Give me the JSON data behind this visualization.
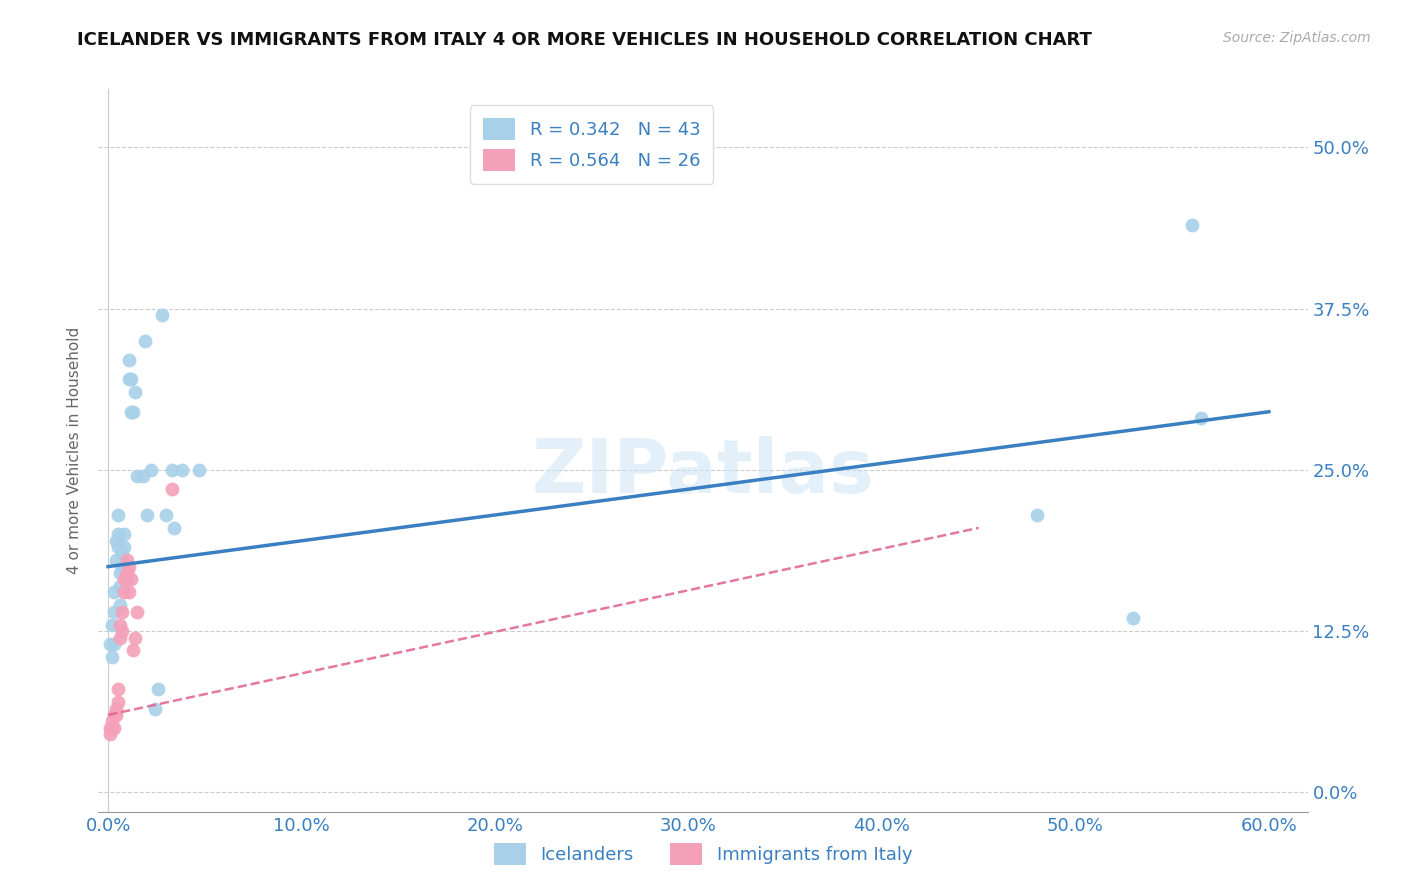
{
  "title": "ICELANDER VS IMMIGRANTS FROM ITALY 4 OR MORE VEHICLES IN HOUSEHOLD CORRELATION CHART",
  "source": "Source: ZipAtlas.com",
  "xlabel_ticks": [
    "0.0%",
    "10.0%",
    "20.0%",
    "30.0%",
    "40.0%",
    "50.0%",
    "60.0%"
  ],
  "ylabel_ticks": [
    "0.0%",
    "12.5%",
    "25.0%",
    "37.5%",
    "50.0%"
  ],
  "ylabel_label": "4 or more Vehicles in Household",
  "legend_label1": "Icelanders",
  "legend_label2": "Immigrants from Italy",
  "R1": 0.342,
  "N1": 43,
  "R2": 0.564,
  "N2": 26,
  "color_blue": "#a8d0e8",
  "color_pink": "#f4a0b8",
  "color_blue_line": "#3a7fc1",
  "color_pink_line": "#e06090",
  "color_text_blue": "#3a7fc1",
  "watermark_text": "ZIPatlas",
  "blue_points": [
    [
      0.001,
      0.115
    ],
    [
      0.002,
      0.105
    ],
    [
      0.002,
      0.13
    ],
    [
      0.003,
      0.155
    ],
    [
      0.003,
      0.14
    ],
    [
      0.003,
      0.115
    ],
    [
      0.004,
      0.195
    ],
    [
      0.004,
      0.18
    ],
    [
      0.005,
      0.2
    ],
    [
      0.005,
      0.19
    ],
    [
      0.005,
      0.215
    ],
    [
      0.006,
      0.17
    ],
    [
      0.006,
      0.16
    ],
    [
      0.006,
      0.145
    ],
    [
      0.007,
      0.185
    ],
    [
      0.007,
      0.175
    ],
    [
      0.008,
      0.2
    ],
    [
      0.008,
      0.19
    ],
    [
      0.009,
      0.175
    ],
    [
      0.01,
      0.165
    ],
    [
      0.011,
      0.335
    ],
    [
      0.011,
      0.32
    ],
    [
      0.012,
      0.295
    ],
    [
      0.012,
      0.32
    ],
    [
      0.013,
      0.295
    ],
    [
      0.014,
      0.31
    ],
    [
      0.015,
      0.245
    ],
    [
      0.018,
      0.245
    ],
    [
      0.019,
      0.35
    ],
    [
      0.02,
      0.215
    ],
    [
      0.022,
      0.25
    ],
    [
      0.024,
      0.065
    ],
    [
      0.026,
      0.08
    ],
    [
      0.028,
      0.37
    ],
    [
      0.03,
      0.215
    ],
    [
      0.033,
      0.25
    ],
    [
      0.034,
      0.205
    ],
    [
      0.038,
      0.25
    ],
    [
      0.047,
      0.25
    ],
    [
      0.48,
      0.215
    ],
    [
      0.53,
      0.135
    ],
    [
      0.56,
      0.44
    ],
    [
      0.565,
      0.29
    ]
  ],
  "pink_points": [
    [
      0.001,
      0.05
    ],
    [
      0.001,
      0.045
    ],
    [
      0.002,
      0.055
    ],
    [
      0.002,
      0.05
    ],
    [
      0.003,
      0.06
    ],
    [
      0.003,
      0.05
    ],
    [
      0.004,
      0.065
    ],
    [
      0.004,
      0.06
    ],
    [
      0.005,
      0.08
    ],
    [
      0.005,
      0.07
    ],
    [
      0.006,
      0.13
    ],
    [
      0.006,
      0.12
    ],
    [
      0.007,
      0.14
    ],
    [
      0.007,
      0.125
    ],
    [
      0.008,
      0.165
    ],
    [
      0.008,
      0.155
    ],
    [
      0.009,
      0.165
    ],
    [
      0.01,
      0.18
    ],
    [
      0.01,
      0.17
    ],
    [
      0.011,
      0.175
    ],
    [
      0.011,
      0.155
    ],
    [
      0.012,
      0.165
    ],
    [
      0.013,
      0.11
    ],
    [
      0.014,
      0.12
    ],
    [
      0.015,
      0.14
    ],
    [
      0.033,
      0.235
    ]
  ],
  "blue_line_x": [
    0.0,
    0.6
  ],
  "blue_line_y": [
    0.175,
    0.295
  ],
  "pink_line_x": [
    0.0,
    0.45
  ],
  "pink_line_y": [
    0.06,
    0.205
  ],
  "xlim": [
    -0.005,
    0.62
  ],
  "ylim": [
    -0.015,
    0.545
  ],
  "x_tick_vals": [
    0.0,
    0.1,
    0.2,
    0.3,
    0.4,
    0.5,
    0.6
  ],
  "y_tick_vals": [
    0.0,
    0.125,
    0.25,
    0.375,
    0.5
  ],
  "figsize": [
    14.06,
    8.92
  ],
  "dpi": 100
}
